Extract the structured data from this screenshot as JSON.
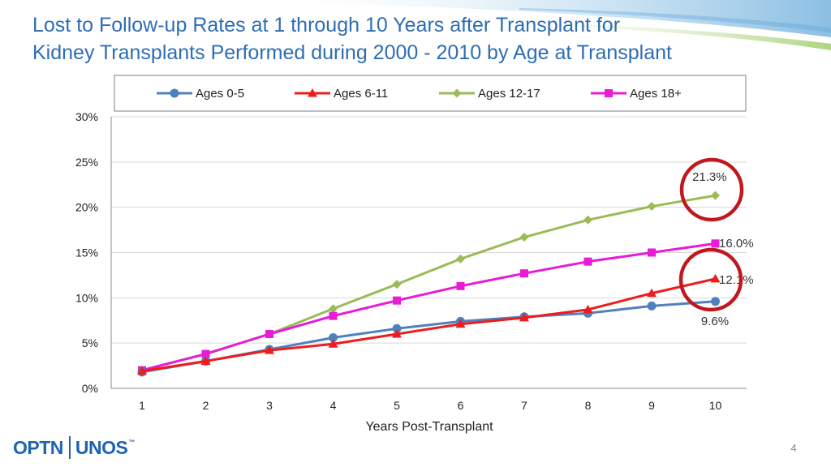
{
  "slide": {
    "title_line1": "Lost to Follow-up Rates at 1 through 10 Years after Transplant for",
    "title_line2": "Kidney Transplants Performed during 2000 - 2010 by Age at Transplant",
    "logo_left": "OPTN",
    "logo_right": "UNOS",
    "logo_tm": "™",
    "page_number": "4",
    "title_color": "#2E6DB4",
    "logo_color": "#1F63B0"
  },
  "chart_data": {
    "type": "line",
    "title": "",
    "xlabel": "Years Post-Transplant",
    "ylabel": "",
    "x": [
      1,
      2,
      3,
      4,
      5,
      6,
      7,
      8,
      9,
      10
    ],
    "ylim": [
      0,
      30
    ],
    "yticks": [
      0,
      5,
      10,
      15,
      20,
      25,
      30
    ],
    "ytick_labels": [
      "0%",
      "5%",
      "10%",
      "15%",
      "20%",
      "25%",
      "30%"
    ],
    "xtick_labels": [
      "1",
      "2",
      "3",
      "4",
      "5",
      "6",
      "7",
      "8",
      "9",
      "10"
    ],
    "grid": "horizontal",
    "legend_position": "top",
    "series": [
      {
        "name": "Ages 0-5",
        "color": "#4F81BD",
        "marker": "circle",
        "values": [
          1.8,
          3.0,
          4.3,
          5.6,
          6.6,
          7.4,
          7.9,
          8.3,
          9.1,
          9.6
        ]
      },
      {
        "name": "Ages 6-11",
        "color": "#EE1C1C",
        "marker": "triangle",
        "values": [
          1.9,
          3.0,
          4.2,
          4.9,
          6.0,
          7.1,
          7.8,
          8.7,
          10.5,
          12.1
        ]
      },
      {
        "name": "Ages 12-17",
        "color": "#9BBB59",
        "marker": "diamond",
        "values": [
          2.0,
          3.8,
          6.0,
          8.8,
          11.5,
          14.3,
          16.7,
          18.6,
          20.1,
          21.3
        ]
      },
      {
        "name": "Ages 18+",
        "color": "#E81BD6",
        "marker": "square",
        "values": [
          2.0,
          3.8,
          6.0,
          8.0,
          9.7,
          11.3,
          12.7,
          14.0,
          15.0,
          16.0
        ]
      }
    ],
    "annotations": [
      {
        "text": "21.3%",
        "series": "Ages 12-17",
        "x": 10,
        "circled": true
      },
      {
        "text": "16.0%",
        "series": "Ages 18+",
        "x": 10,
        "circled": false
      },
      {
        "text": "12.1%",
        "series": "Ages 6-11",
        "x": 10,
        "circled": true
      },
      {
        "text": "9.6%",
        "series": "Ages 0-5",
        "x": 10,
        "circled": false
      }
    ],
    "highlight_circle_color": "#C0181E"
  }
}
